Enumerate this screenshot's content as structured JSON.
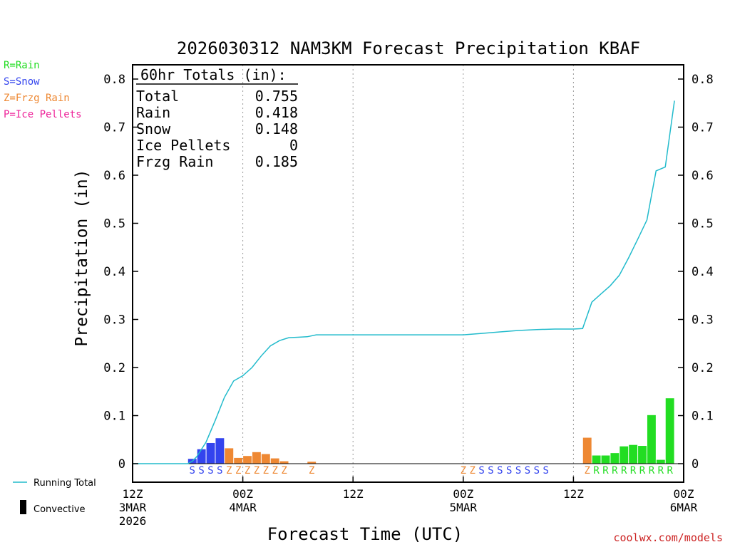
{
  "chart_data": {
    "type": "bar",
    "title": "2026030312 NAM3KM Forecast Precipitation KBAF",
    "xlabel": "Forecast Time (UTC)",
    "ylabel": "Precipitation (in)",
    "ylim": [
      0,
      0.8
    ],
    "xlim_hours": [
      0,
      60
    ],
    "y_ticks": [
      "0",
      "0.1",
      "0.2",
      "0.3",
      "0.4",
      "0.5",
      "0.6",
      "0.7",
      "0.8"
    ],
    "x_ticks": [
      {
        "hour": 0,
        "lines": [
          "12Z",
          "3MAR",
          "2026"
        ]
      },
      {
        "hour": 12,
        "lines": [
          "00Z",
          "4MAR"
        ]
      },
      {
        "hour": 24,
        "lines": [
          "12Z"
        ]
      },
      {
        "hour": 36,
        "lines": [
          "00Z",
          "5MAR"
        ]
      },
      {
        "hour": 48,
        "lines": [
          "12Z"
        ]
      },
      {
        "hour": 60,
        "lines": [
          "00Z",
          "6MAR"
        ]
      }
    ],
    "legend": {
      "ptype": [
        {
          "label": "R=Rain",
          "color": "#22dd22"
        },
        {
          "label": "S=Snow",
          "color": "#3344ee"
        },
        {
          "label": "Z=Frzg Rain",
          "color": "#ee8833"
        },
        {
          "label": "P=Ice Pellets",
          "color": "#ee2299"
        }
      ],
      "running_total_label": "Running Total",
      "convective_label": "Convective"
    },
    "totals": {
      "heading": "60hr Totals (in):",
      "rows": [
        {
          "label": "Total",
          "value": "0.755"
        },
        {
          "label": "Rain",
          "value": "0.418"
        },
        {
          "label": "Snow",
          "value": "0.148"
        },
        {
          "label": "Ice Pellets",
          "value": "0"
        },
        {
          "label": "Frzg Rain",
          "value": "0.185"
        }
      ]
    },
    "series": [
      {
        "name": "Hourly Precipitation",
        "kind": "bars",
        "bars": [
          {
            "hour": 7,
            "value": 0.01,
            "ptype": "S"
          },
          {
            "hour": 8,
            "value": 0.03,
            "ptype": "S"
          },
          {
            "hour": 9,
            "value": 0.043,
            "ptype": "S"
          },
          {
            "hour": 10,
            "value": 0.053,
            "ptype": "S"
          },
          {
            "hour": 11,
            "value": 0.032,
            "ptype": "Z"
          },
          {
            "hour": 12,
            "value": 0.012,
            "ptype": "Z"
          },
          {
            "hour": 13,
            "value": 0.016,
            "ptype": "Z"
          },
          {
            "hour": 14,
            "value": 0.024,
            "ptype": "Z"
          },
          {
            "hour": 15,
            "value": 0.02,
            "ptype": "Z"
          },
          {
            "hour": 16,
            "value": 0.011,
            "ptype": "Z"
          },
          {
            "hour": 17,
            "value": 0.005,
            "ptype": "Z"
          },
          {
            "hour": 20,
            "value": 0.004,
            "ptype": "Z"
          },
          {
            "hour": 50,
            "value": 0.054,
            "ptype": "Z"
          },
          {
            "hour": 51,
            "value": 0.017,
            "ptype": "R"
          },
          {
            "hour": 52,
            "value": 0.017,
            "ptype": "R"
          },
          {
            "hour": 53,
            "value": 0.022,
            "ptype": "R"
          },
          {
            "hour": 54,
            "value": 0.036,
            "ptype": "R"
          },
          {
            "hour": 55,
            "value": 0.039,
            "ptype": "R"
          },
          {
            "hour": 56,
            "value": 0.037,
            "ptype": "R"
          },
          {
            "hour": 57,
            "value": 0.101,
            "ptype": "R"
          },
          {
            "hour": 58,
            "value": 0.008,
            "ptype": "R"
          },
          {
            "hour": 59,
            "value": 0.136,
            "ptype": "R"
          }
        ]
      },
      {
        "name": "Running Total",
        "kind": "line",
        "color": "#22bbcc",
        "points": [
          [
            0,
            0
          ],
          [
            6,
            0
          ],
          [
            6.5,
            0.005
          ],
          [
            7,
            0.015
          ],
          [
            8,
            0.045
          ],
          [
            9,
            0.09
          ],
          [
            10,
            0.138
          ],
          [
            11,
            0.172
          ],
          [
            12,
            0.183
          ],
          [
            13,
            0.2
          ],
          [
            14,
            0.224
          ],
          [
            15,
            0.245
          ],
          [
            16,
            0.256
          ],
          [
            17,
            0.262
          ],
          [
            18,
            0.263
          ],
          [
            19,
            0.264
          ],
          [
            20,
            0.268
          ],
          [
            24,
            0.268
          ],
          [
            30,
            0.268
          ],
          [
            36,
            0.268
          ],
          [
            38,
            0.271
          ],
          [
            40,
            0.274
          ],
          [
            42,
            0.277
          ],
          [
            44,
            0.279
          ],
          [
            46,
            0.28
          ],
          [
            48,
            0.28
          ],
          [
            49,
            0.281
          ],
          [
            50,
            0.336
          ],
          [
            51,
            0.353
          ],
          [
            52,
            0.37
          ],
          [
            53,
            0.392
          ],
          [
            54,
            0.428
          ],
          [
            55,
            0.467
          ],
          [
            56,
            0.507
          ],
          [
            57,
            0.609
          ],
          [
            58,
            0.617
          ],
          [
            59,
            0.755
          ]
        ]
      }
    ]
  },
  "footer": {
    "credit": "coolwx.com/models"
  }
}
